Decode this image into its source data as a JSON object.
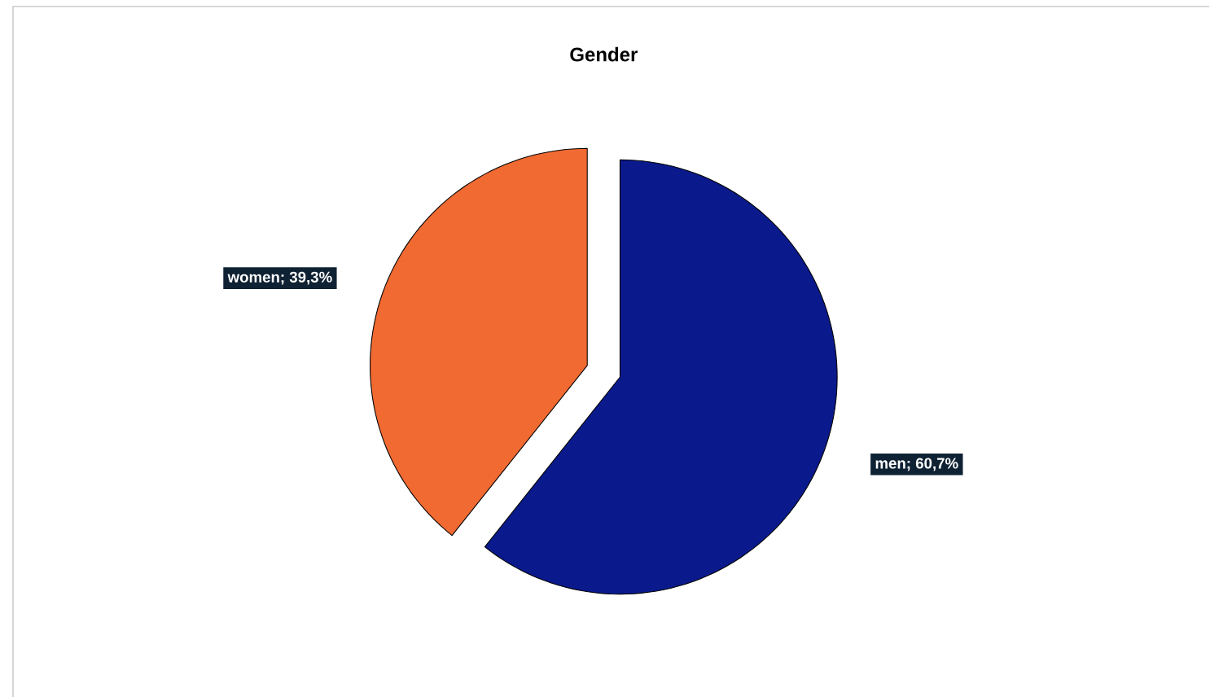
{
  "chart_data": {
    "type": "pie",
    "title": "Gender",
    "categories": [
      "women; 39,3%",
      "men; 60,7%"
    ],
    "values": [
      39.3,
      60.7
    ],
    "colors": [
      "#f06a32",
      "#0a1a8c"
    ]
  }
}
